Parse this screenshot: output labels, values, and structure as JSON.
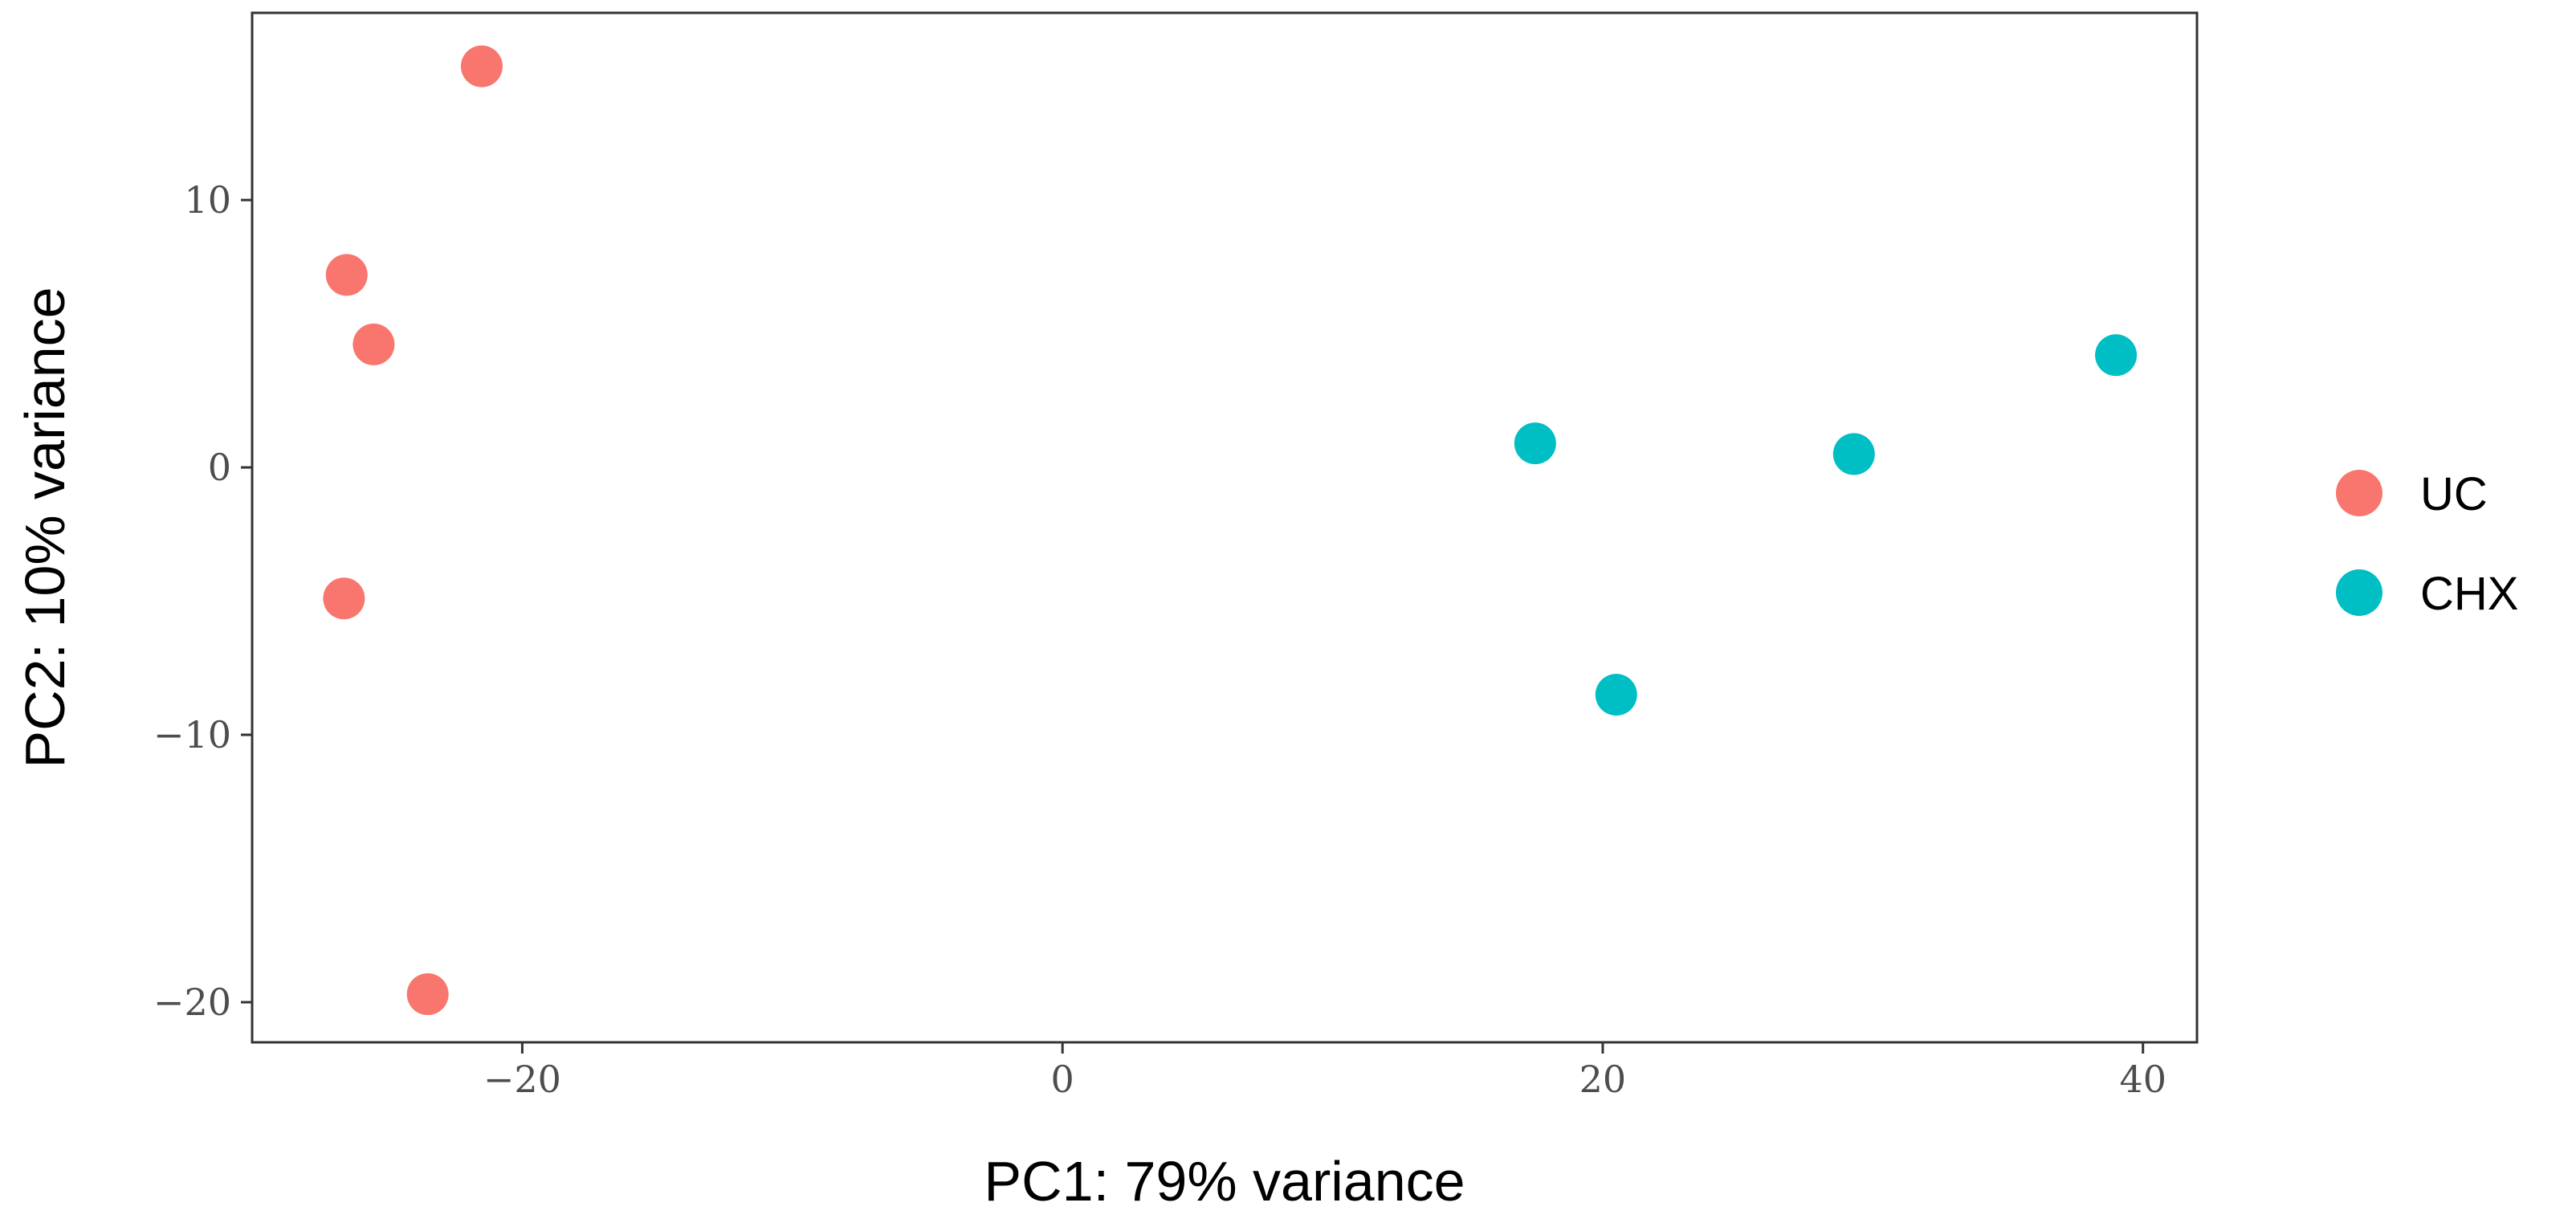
{
  "chart_data": {
    "type": "scatter",
    "title": "",
    "xlabel": "PC1: 79% variance",
    "ylabel": "PC2: 10% variance",
    "xlim": [
      -30,
      42
    ],
    "ylim": [
      -21.5,
      17
    ],
    "x_ticks": [
      -20,
      0,
      20,
      40
    ],
    "y_ticks": [
      -20,
      -10,
      0,
      10
    ],
    "x_tick_labels": [
      "−20",
      "0",
      "20",
      "40"
    ],
    "y_tick_labels": [
      "−20",
      "−10",
      "0",
      "10"
    ],
    "grid": false,
    "legend_position": "right",
    "series": [
      {
        "name": "UC",
        "color": "#F8766D",
        "points": [
          {
            "x": -21.5,
            "y": 15.0
          },
          {
            "x": -26.5,
            "y": 7.2
          },
          {
            "x": -25.5,
            "y": 4.6
          },
          {
            "x": -26.6,
            "y": -4.9
          },
          {
            "x": -23.5,
            "y": -19.7
          }
        ]
      },
      {
        "name": "CHX",
        "color": "#00BFC4",
        "points": [
          {
            "x": 17.5,
            "y": 0.9
          },
          {
            "x": 20.5,
            "y": -8.5
          },
          {
            "x": 29.3,
            "y": 0.5
          },
          {
            "x": 39.0,
            "y": 4.2
          }
        ]
      }
    ]
  }
}
